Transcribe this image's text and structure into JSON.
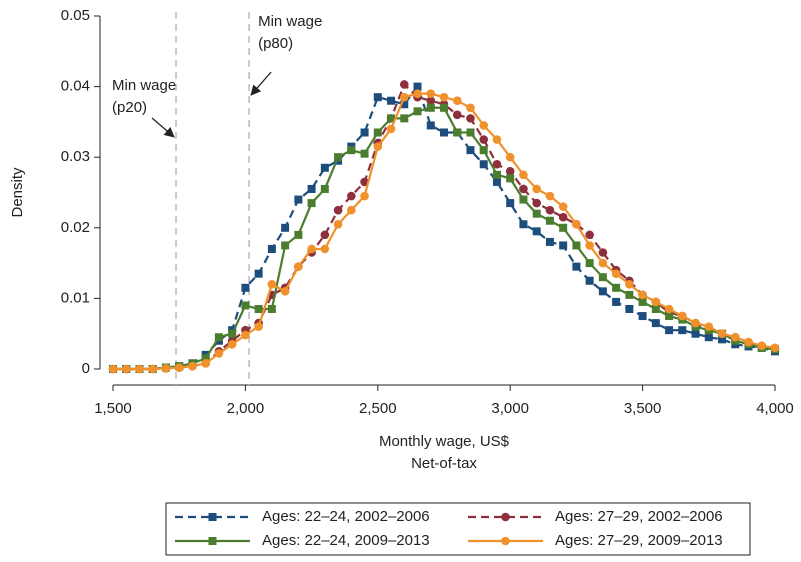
{
  "chart_data": {
    "type": "line",
    "xlabel": [
      "Monthly wage, US$",
      "Net-of-tax"
    ],
    "ylabel": "Density",
    "x": [
      1500,
      1550,
      1600,
      1650,
      1700,
      1750,
      1800,
      1850,
      1900,
      1950,
      2000,
      2050,
      2100,
      2150,
      2200,
      2250,
      2300,
      2350,
      2400,
      2450,
      2500,
      2550,
      2600,
      2650,
      2700,
      2750,
      2800,
      2850,
      2900,
      2950,
      3000,
      3050,
      3100,
      3150,
      3200,
      3250,
      3300,
      3350,
      3400,
      3450,
      3500,
      3550,
      3600,
      3650,
      3700,
      3750,
      3800,
      3850,
      3900,
      3950,
      4000
    ],
    "series": [
      {
        "name": "Ages: 22–24, 2002–2006",
        "color": "#1d4d7c",
        "dash": true,
        "marker": "square",
        "values": [
          0,
          0,
          0,
          0,
          0.0002,
          0.0004,
          0.0008,
          0.002,
          0.004,
          0.0055,
          0.0115,
          0.0135,
          0.017,
          0.02,
          0.024,
          0.0255,
          0.0285,
          0.0295,
          0.0315,
          0.0335,
          0.0385,
          0.038,
          0.0375,
          0.04,
          0.0345,
          0.0335,
          0.0335,
          0.031,
          0.029,
          0.0265,
          0.0235,
          0.0205,
          0.0195,
          0.018,
          0.0175,
          0.0145,
          0.0125,
          0.011,
          0.0095,
          0.0085,
          0.0075,
          0.0065,
          0.0055,
          0.0055,
          0.005,
          0.0045,
          0.0042,
          0.0035,
          0.0032,
          0.003,
          0.0025
        ]
      },
      {
        "name": "Ages: 27–29, 2002–2006",
        "color": "#8e2f3c",
        "dash": true,
        "marker": "circle",
        "values": [
          0,
          0,
          0,
          0,
          0.0001,
          0.0002,
          0.0004,
          0.0008,
          0.0025,
          0.004,
          0.0055,
          0.0065,
          0.0105,
          0.0115,
          0.0145,
          0.0165,
          0.019,
          0.0225,
          0.0245,
          0.0265,
          0.032,
          0.0355,
          0.0403,
          0.0385,
          0.038,
          0.0375,
          0.036,
          0.0355,
          0.0325,
          0.029,
          0.028,
          0.0255,
          0.0235,
          0.0225,
          0.0215,
          0.0205,
          0.019,
          0.0165,
          0.014,
          0.0125,
          0.0105,
          0.0095,
          0.008,
          0.0075,
          0.0065,
          0.0055,
          0.005,
          0.0045,
          0.0038,
          0.0032,
          0.0028
        ]
      },
      {
        "name": "Ages: 22–24, 2009–2013",
        "color": "#4b7d2f",
        "dash": false,
        "marker": "square",
        "values": [
          0,
          0,
          0,
          0,
          0.0002,
          0.0004,
          0.0008,
          0.0015,
          0.0045,
          0.005,
          0.009,
          0.0085,
          0.0085,
          0.0175,
          0.019,
          0.0235,
          0.0255,
          0.03,
          0.031,
          0.0305,
          0.0335,
          0.0355,
          0.0355,
          0.0365,
          0.037,
          0.037,
          0.0335,
          0.0335,
          0.031,
          0.0275,
          0.027,
          0.024,
          0.022,
          0.021,
          0.02,
          0.0175,
          0.015,
          0.013,
          0.0115,
          0.0105,
          0.0095,
          0.0085,
          0.0075,
          0.007,
          0.006,
          0.0055,
          0.005,
          0.004,
          0.0035,
          0.003,
          0.0028
        ]
      },
      {
        "name": "Ages: 27–29, 2009–2013",
        "color": "#f0912c",
        "dash": false,
        "marker": "circle",
        "values": [
          0,
          0,
          0,
          0,
          0.0001,
          0.0002,
          0.0004,
          0.0008,
          0.0022,
          0.0035,
          0.0048,
          0.006,
          0.012,
          0.011,
          0.0145,
          0.017,
          0.017,
          0.0205,
          0.0225,
          0.0245,
          0.0315,
          0.034,
          0.0385,
          0.039,
          0.039,
          0.0385,
          0.038,
          0.037,
          0.0345,
          0.0325,
          0.03,
          0.0275,
          0.0255,
          0.0245,
          0.023,
          0.0205,
          0.0175,
          0.015,
          0.0135,
          0.012,
          0.0105,
          0.0095,
          0.0085,
          0.0075,
          0.0065,
          0.006,
          0.005,
          0.0045,
          0.0038,
          0.0033,
          0.003
        ]
      }
    ],
    "annotations": [
      {
        "text": [
          "Min wage",
          "(p20)"
        ],
        "x": 1738
      },
      {
        "text": [
          "Min wage",
          "(p80)"
        ],
        "x": 2014
      }
    ],
    "xlim": [
      1500,
      4000
    ],
    "xticks": [
      {
        "value": 1500,
        "label": "1,500"
      },
      {
        "value": 2000,
        "label": "2,000"
      },
      {
        "value": 2500,
        "label": "2,500"
      },
      {
        "value": 3000,
        "label": "3,000"
      },
      {
        "value": 3500,
        "label": "3,500"
      },
      {
        "value": 4000,
        "label": "4,000"
      }
    ],
    "ylim": [
      0,
      0.05
    ],
    "yticks": [
      0,
      0.01,
      0.02,
      0.03,
      0.04,
      0.05
    ],
    "grid": false,
    "legend": "bottom"
  }
}
